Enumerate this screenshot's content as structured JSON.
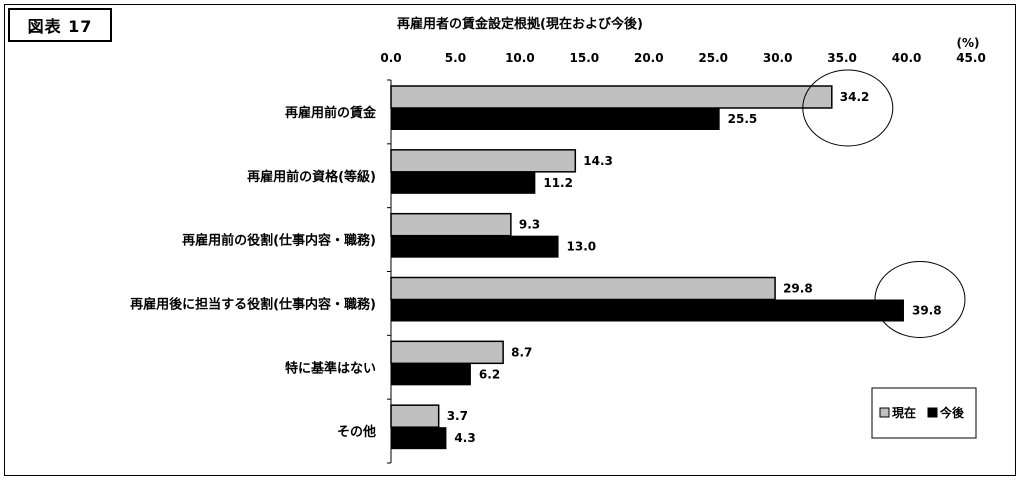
{
  "figure_label": "図表 17",
  "chart_data": {
    "type": "bar",
    "orientation": "horizontal",
    "title": "再雇用者の賃金設定根拠(現在および今後)",
    "unit": "(%)",
    "xlim": [
      0,
      45
    ],
    "xticks": [
      "0.0",
      "5.0",
      "10.0",
      "15.0",
      "20.0",
      "25.0",
      "30.0",
      "35.0",
      "40.0",
      "45.0"
    ],
    "categories": [
      "再雇用前の賃金",
      "再雇用前の資格(等級)",
      "再雇用前の役割(仕事内容・職務)",
      "再雇用後に担当する役割(仕事内容・職務)",
      "特に基準はない",
      "その他"
    ],
    "series": [
      {
        "name": "現在",
        "color": "#c0c0c0",
        "values": [
          34.2,
          14.3,
          9.3,
          29.8,
          8.7,
          3.7
        ],
        "labels": [
          "34.2",
          "14.3",
          "9.3",
          "29.8",
          "8.7",
          "3.7"
        ]
      },
      {
        "name": "今後",
        "color": "#000000",
        "values": [
          25.5,
          11.2,
          13.0,
          39.8,
          6.2,
          4.3
        ],
        "labels": [
          "25.5",
          "11.2",
          "13.0",
          "39.8",
          "6.2",
          "4.3"
        ]
      }
    ],
    "legend_position": "bottom-right",
    "grid": false,
    "circled": [
      "34.2",
      "39.8"
    ]
  }
}
